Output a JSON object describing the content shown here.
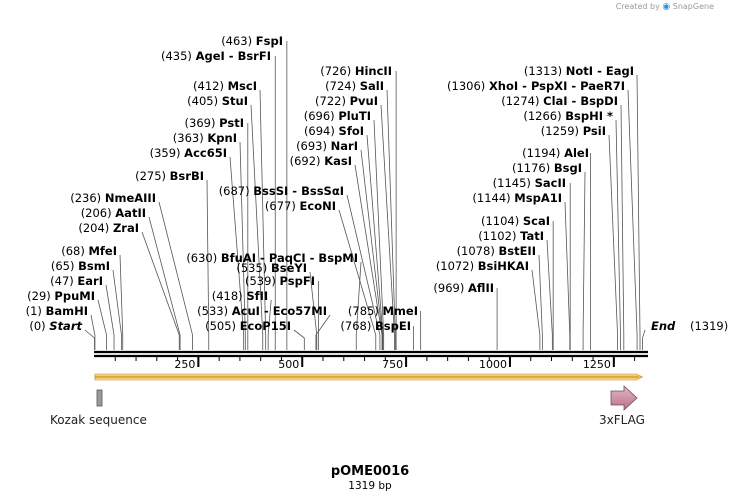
{
  "credit": {
    "prefix": "Created by",
    "brand": "SnapGene"
  },
  "plasmid": {
    "name": "pOME0016",
    "length_label": "1319 bp",
    "length": 1319
  },
  "axis": {
    "ticks": [
      250,
      500,
      750,
      1000,
      1250
    ],
    "minor_step": 50
  },
  "features": [
    {
      "name": "Kozak sequence",
      "start": 16,
      "end": 25,
      "color": "#9a9a9a",
      "kind": "box"
    },
    {
      "name": "3xFLAG",
      "start": 1253,
      "end": 1319,
      "color": "#c9889f",
      "kind": "arrow"
    },
    {
      "name": "orf",
      "start": 1,
      "end": 1319,
      "color": "#f0c060",
      "kind": "orf"
    }
  ],
  "sites": [
    {
      "pos": 0,
      "label": "(0)",
      "name": "Start",
      "style": "end"
    },
    {
      "pos": 1,
      "label": "(1)",
      "name": "BamHI"
    },
    {
      "pos": 29,
      "label": "(29)",
      "name": "PpuMI"
    },
    {
      "pos": 47,
      "label": "(47)",
      "name": "EarI"
    },
    {
      "pos": 65,
      "label": "(65)",
      "name": "BsmI"
    },
    {
      "pos": 68,
      "label": "(68)",
      "name": "MfeI"
    },
    {
      "pos": 204,
      "label": "(204)",
      "name": "ZraI"
    },
    {
      "pos": 206,
      "label": "(206)",
      "name": "AatII"
    },
    {
      "pos": 236,
      "label": "(236)",
      "name": "NmeAIII"
    },
    {
      "pos": 275,
      "label": "(275)",
      "name": "BsrBI"
    },
    {
      "pos": 359,
      "label": "(359)",
      "name": "Acc65I"
    },
    {
      "pos": 363,
      "label": "(363)",
      "name": "KpnI"
    },
    {
      "pos": 369,
      "label": "(369)",
      "name": "PstI"
    },
    {
      "pos": 405,
      "label": "(405)",
      "name": "StuI"
    },
    {
      "pos": 412,
      "label": "(412)",
      "name": "MscI"
    },
    {
      "pos": 418,
      "label": "(418)",
      "name": "SfII"
    },
    {
      "pos": 435,
      "label": "(435)",
      "name": "AgeI - BsrFI"
    },
    {
      "pos": 463,
      "label": "(463)",
      "name": "FspI"
    },
    {
      "pos": 687,
      "label": "(687)",
      "name": "BssSI - BssSαI"
    },
    {
      "pos": 677,
      "label": "(677)",
      "name": "EcoNI"
    },
    {
      "pos": 630,
      "label": "(630)",
      "name": "BfuAI - PaqCI - BspMI"
    },
    {
      "pos": 539,
      "label": "(539)",
      "name": "PspFI"
    },
    {
      "pos": 535,
      "label": "(535)",
      "name": "BseYI"
    },
    {
      "pos": 533,
      "label": "(533)",
      "name": "AcuI - Eco57MI"
    },
    {
      "pos": 505,
      "label": "(505)",
      "name": "EcoP15I"
    },
    {
      "pos": 726,
      "label": "(726)",
      "name": "HincII"
    },
    {
      "pos": 724,
      "label": "(724)",
      "name": "SalI"
    },
    {
      "pos": 722,
      "label": "(722)",
      "name": "PvuI"
    },
    {
      "pos": 696,
      "label": "(696)",
      "name": "PluTI"
    },
    {
      "pos": 694,
      "label": "(694)",
      "name": "SfoI"
    },
    {
      "pos": 693,
      "label": "(693)",
      "name": "NarI"
    },
    {
      "pos": 692,
      "label": "(692)",
      "name": "KasI"
    },
    {
      "pos": 785,
      "label": "(785)",
      "name": "MmeI"
    },
    {
      "pos": 768,
      "label": "(768)",
      "name": "BspEI"
    },
    {
      "pos": 1313,
      "label": "(1313)",
      "name": "NotI - EagI"
    },
    {
      "pos": 1306,
      "label": "(1306)",
      "name": "XhoI - PspXI - PaeR7I"
    },
    {
      "pos": 1274,
      "label": "(1274)",
      "name": "ClaI - BspDI"
    },
    {
      "pos": 1266,
      "label": "(1266)",
      "name": "BspHI *"
    },
    {
      "pos": 1259,
      "label": "(1259)",
      "name": "PsiI"
    },
    {
      "pos": 1194,
      "label": "(1194)",
      "name": "AleI"
    },
    {
      "pos": 1176,
      "label": "(1176)",
      "name": "BsgI"
    },
    {
      "pos": 1145,
      "label": "(1145)",
      "name": "SacII"
    },
    {
      "pos": 1144,
      "label": "(1144)",
      "name": "MspA1I"
    },
    {
      "pos": 1104,
      "label": "(1104)",
      "name": "ScaI"
    },
    {
      "pos": 1102,
      "label": "(1102)",
      "name": "TatI"
    },
    {
      "pos": 1078,
      "label": "(1078)",
      "name": "BstEII"
    },
    {
      "pos": 1072,
      "label": "(1072)",
      "name": "BsiHKAI"
    },
    {
      "pos": 969,
      "label": "(969)",
      "name": "AflII"
    },
    {
      "pos": 1319,
      "label": "(1319)",
      "name": "End",
      "style": "end"
    }
  ]
}
